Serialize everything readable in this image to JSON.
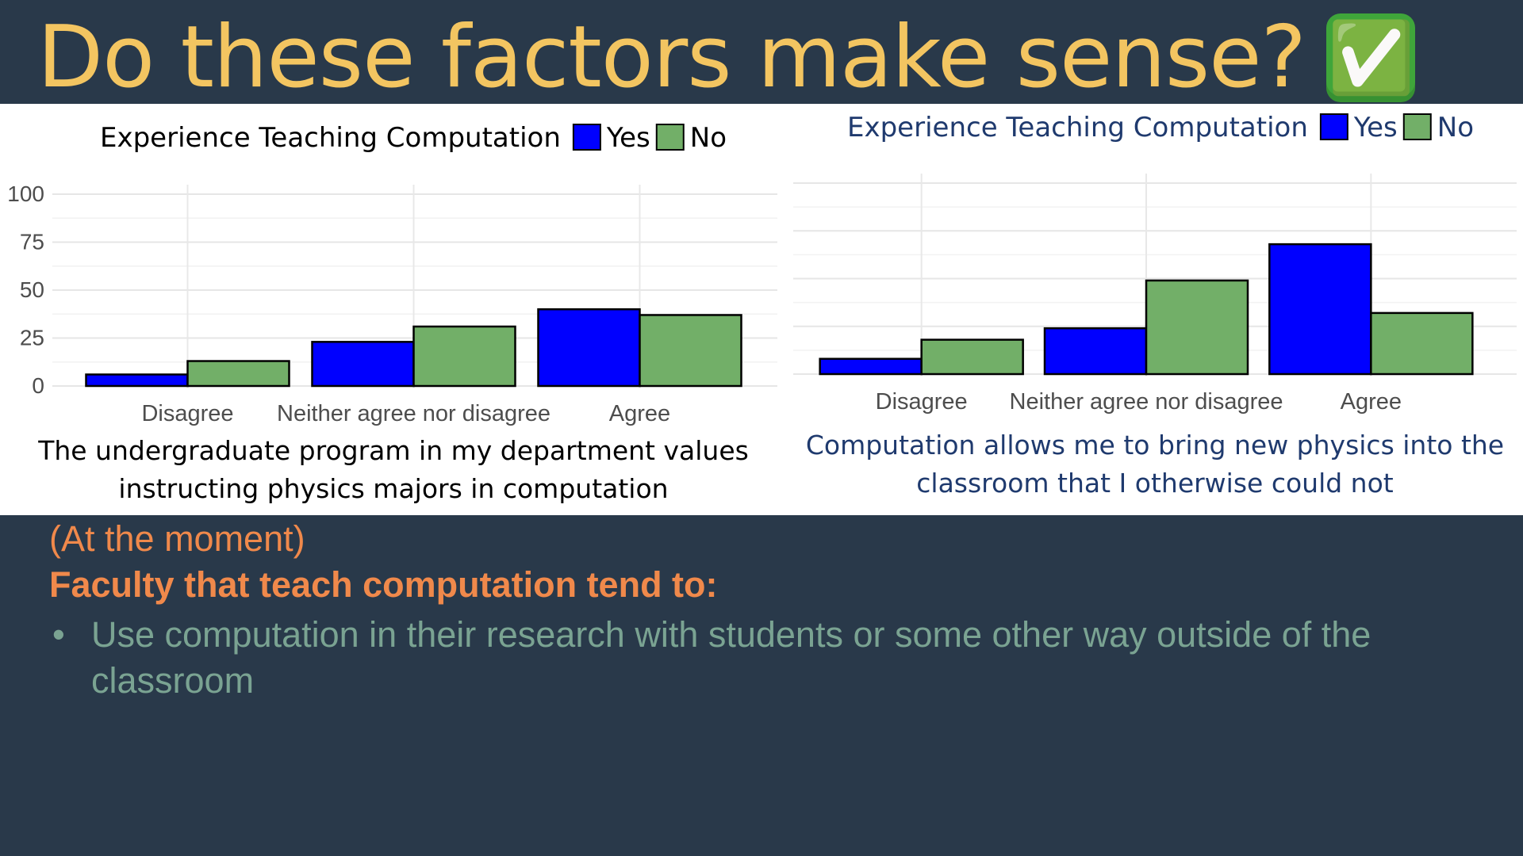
{
  "slide": {
    "title": "Do these factors make sense?",
    "title_emoji": "✅",
    "subtitle_moment": "(At the moment)",
    "subtitle_bold": "Faculty that teach computation tend to:",
    "bullet_symbol": "•",
    "bullet_text": "Use computation in their research with students or some other way outside of the classroom"
  },
  "colors": {
    "background": "#29394a",
    "title": "#f3c561",
    "accent_orange": "#f0894b",
    "bullet_green": "#7aa392",
    "yes_series": "#0000ff",
    "no_series": "#72af68",
    "right_chart_text": "#1f3a6e"
  },
  "chart_data": [
    {
      "type": "bar",
      "legend_title": "Experience Teaching Computation",
      "legend_position": "top",
      "categories": [
        "Disagree",
        "Neither agree nor disagree",
        "Agree"
      ],
      "series": [
        {
          "name": "Yes",
          "values": [
            6,
            23,
            40
          ]
        },
        {
          "name": "No",
          "values": [
            13,
            31,
            37
          ]
        }
      ],
      "ylim": [
        0,
        100
      ],
      "yticks": [
        "0",
        "25",
        "50",
        "75",
        "100"
      ],
      "grid": true,
      "caption": "The undergraduate program in my department values instructing physics majors in computation"
    },
    {
      "type": "bar",
      "legend_title": "Experience Teaching Computation",
      "legend_position": "top",
      "categories": [
        "Disagree",
        "Neither agree nor disagree",
        "Agree"
      ],
      "series": [
        {
          "name": "Yes",
          "values": [
            8,
            24,
            68
          ]
        },
        {
          "name": "No",
          "values": [
            18,
            49,
            32
          ]
        }
      ],
      "ylim": [
        0,
        100
      ],
      "yticks": [],
      "grid": true,
      "caption": "Computation allows me to bring new physics into the classroom that I otherwise could not"
    }
  ]
}
